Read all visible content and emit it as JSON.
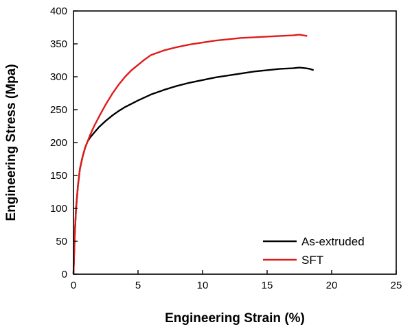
{
  "chart_data": {
    "type": "line",
    "title": "",
    "xlabel": "Engineering Strain (%)",
    "ylabel": "Engineering Stress (Mpa)",
    "xlim": [
      0,
      25
    ],
    "ylim": [
      0,
      400
    ],
    "xticks": [
      0,
      5,
      10,
      15,
      20,
      25
    ],
    "yticks": [
      0,
      50,
      100,
      150,
      200,
      250,
      300,
      350,
      400
    ],
    "grid": false,
    "legend_position": "bottom-right",
    "series": [
      {
        "name": "As-extruded",
        "color": "#000000",
        "x": [
          0,
          0.1,
          0.2,
          0.35,
          0.5,
          0.7,
          0.9,
          1.1,
          1.3,
          1.6,
          2,
          2.5,
          3,
          3.5,
          4,
          5,
          6,
          7,
          8,
          9,
          10,
          11,
          12,
          13,
          14,
          15,
          16,
          17,
          17.5,
          18,
          18.3,
          18.6
        ],
        "y": [
          0,
          60,
          100,
          135,
          160,
          178,
          192,
          202,
          208,
          215,
          224,
          233,
          241,
          248,
          254,
          264,
          273,
          280,
          286,
          291,
          295,
          299,
          302,
          305,
          308,
          310,
          312,
          313,
          314,
          313,
          312,
          310
        ]
      },
      {
        "name": "SFT",
        "color": "#e01b1b",
        "x": [
          0,
          0.1,
          0.2,
          0.35,
          0.5,
          0.7,
          0.9,
          1.1,
          1.3,
          1.6,
          2,
          2.5,
          3,
          3.5,
          4,
          4.5,
          5,
          5.5,
          6,
          7,
          8,
          9,
          10,
          11,
          12,
          13,
          14,
          15,
          16,
          17,
          17.5,
          17.8,
          18.1
        ],
        "y": [
          0,
          60,
          100,
          135,
          160,
          178,
          192,
          202,
          212,
          225,
          240,
          258,
          274,
          288,
          300,
          310,
          318,
          326,
          333,
          340,
          345,
          349,
          352,
          355,
          357,
          359,
          360,
          361,
          362,
          363,
          364,
          363,
          362
        ]
      }
    ]
  }
}
